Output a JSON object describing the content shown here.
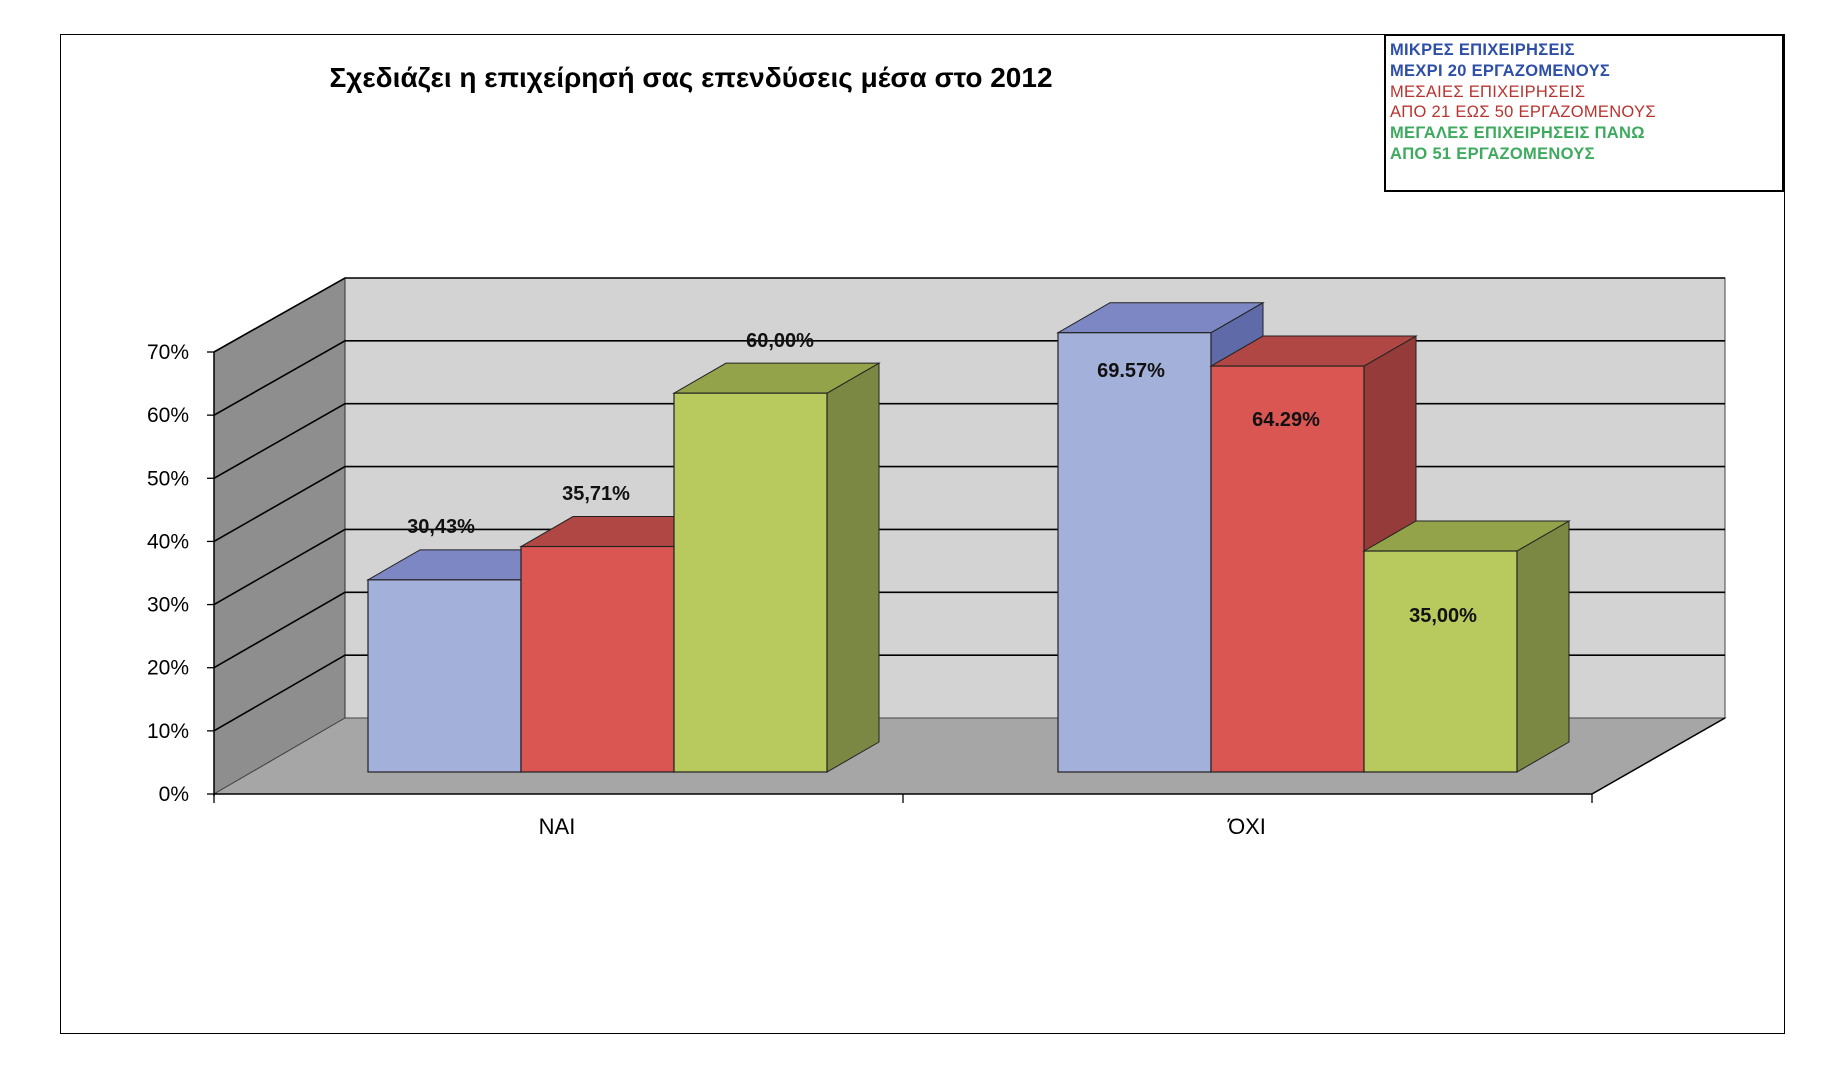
{
  "chart_data": {
    "type": "bar",
    "title": "Σχεδιάζει η επιχείρησή σας επενδύσεις μέσα στο 2012",
    "categories": [
      "ΝΑΙ",
      "ΌΧΙ"
    ],
    "ylim": [
      0,
      70
    ],
    "yticks": [
      "0%",
      "10%",
      "20%",
      "30%",
      "40%",
      "50%",
      "60%",
      "70%"
    ],
    "grid": true,
    "legend_position": "top-right",
    "series": [
      {
        "values": [
          30.43,
          69.57
        ],
        "labels": [
          "30,43%",
          "69.57%"
        ],
        "front": "#A3B0DA",
        "top": "#7C87C4",
        "side": "#5F6AA8"
      },
      {
        "values": [
          35.71,
          64.29
        ],
        "labels": [
          "35,71%",
          "64.29%"
        ],
        "front": "#D95652",
        "top": "#B04744",
        "side": "#953B3A"
      },
      {
        "values": [
          60.0,
          35.0
        ],
        "labels": [
          "60,00%",
          "35,00%"
        ],
        "front": "#B8C95E",
        "top": "#93A34A",
        "side": "#7A8844"
      }
    ]
  },
  "legend": {
    "lines": [
      {
        "text": "ΜΙΚΡΕΣ ΕΠΙΧΕΙΡΗΣΕΙΣ",
        "color": "#2E4FA8"
      },
      {
        "text": "ΜΕΧΡΙ  20 ΕΡΓΑΖΟΜΕΝΟΥΣ",
        "color": "#2E4FA8"
      },
      {
        "text": "ΜΕΣΑΙΕΣ ΕΠΙΧΕΙΡΗΣΕΙΣ",
        "color": "#B8332E"
      },
      {
        "text": "ΑΠΟ 21 ΕΩΣ 50 ΕΡΓΑΖΟΜΕΝΟΥΣ",
        "color": "#B8332E"
      },
      {
        "text": "ΜΕΓΑΛΕΣ ΕΠΙΧΕΙΡΗΣΕΙΣ ΠΑΝΩ",
        "color": "#3DAA5E"
      },
      {
        "text": "ΑΠΟ 51 ΕΡΓΑΖΟΜΕΝΟΥΣ",
        "color": "#3DAA5E"
      }
    ]
  }
}
